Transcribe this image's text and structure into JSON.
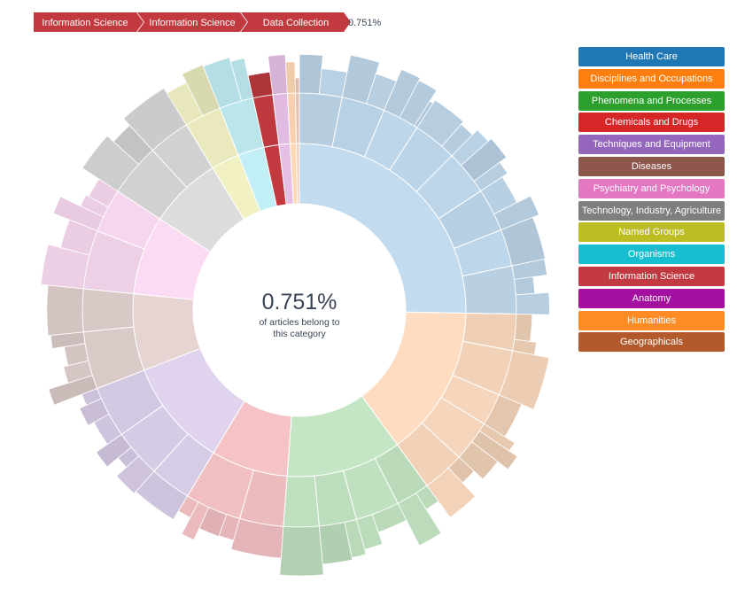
{
  "breadcrumb": {
    "items": [
      {
        "label": "Information Science",
        "color": "#c23a3f"
      },
      {
        "label": "Information Science",
        "color": "#c23a3f"
      },
      {
        "label": "Data Collection",
        "color": "#c23a3f"
      }
    ],
    "value": "0.751%"
  },
  "center": {
    "percent": "0.751%",
    "line1": "of articles belong to",
    "line2": "this category"
  },
  "legend": [
    {
      "label": "Health Care",
      "color": "#1f77b4"
    },
    {
      "label": "Disciplines and Occupations",
      "color": "#ff7f0e"
    },
    {
      "label": "Phenomena and Processes",
      "color": "#2ca02c"
    },
    {
      "label": "Chemicals and Drugs",
      "color": "#d62728"
    },
    {
      "label": "Techniques and Equipment",
      "color": "#9467bd"
    },
    {
      "label": "Diseases",
      "color": "#8c564b"
    },
    {
      "label": "Psychiatry and Psychology",
      "color": "#e377c2"
    },
    {
      "label": "Technology, Industry, Agriculture",
      "color": "#7f7f7f"
    },
    {
      "label": "Named Groups",
      "color": "#bcbd22"
    },
    {
      "label": "Organisms",
      "color": "#17becf"
    },
    {
      "label": "Information Science",
      "color": "#c23a3f"
    },
    {
      "label": "Anatomy",
      "color": "#a30f9e"
    },
    {
      "label": "Humanities",
      "color": "#ff8c24"
    },
    {
      "label": "Geographicals",
      "color": "#b35a2d"
    }
  ],
  "chart_data": {
    "type": "sunburst",
    "categories": [
      "Health Care",
      "Disciplines and Occupations",
      "Phenomena and Processes",
      "Chemicals and Drugs",
      "Techniques and Equipment",
      "Diseases",
      "Psychiatry and Psychology",
      "Technology, Industry, Agriculture",
      "Named Groups",
      "Organisms",
      "Information Science",
      "Anatomy",
      "Humanities",
      "Geographicals"
    ],
    "values": [
      25.8,
      15.0,
      11.4,
      7.6,
      10.7,
      7.6,
      7.8,
      7.2,
      2.8,
      2.6,
      1.5,
      1.1,
      0.6,
      0.3
    ],
    "colors": [
      "#c2dbef",
      "#fddcc1",
      "#c4e6c4",
      "#f5c3c6",
      "#dfd3ee",
      "#e5d4d2",
      "#fadbf3",
      "#dcdcdc",
      "#f1f1c3",
      "#c2eff5",
      "#c23a3f",
      "#e6bfe6",
      "#ffd8b5",
      "#eeccbb"
    ],
    "selected_path": [
      "Information Science",
      "Information Science",
      "Data Collection"
    ],
    "selected_value_percent": 0.751
  }
}
